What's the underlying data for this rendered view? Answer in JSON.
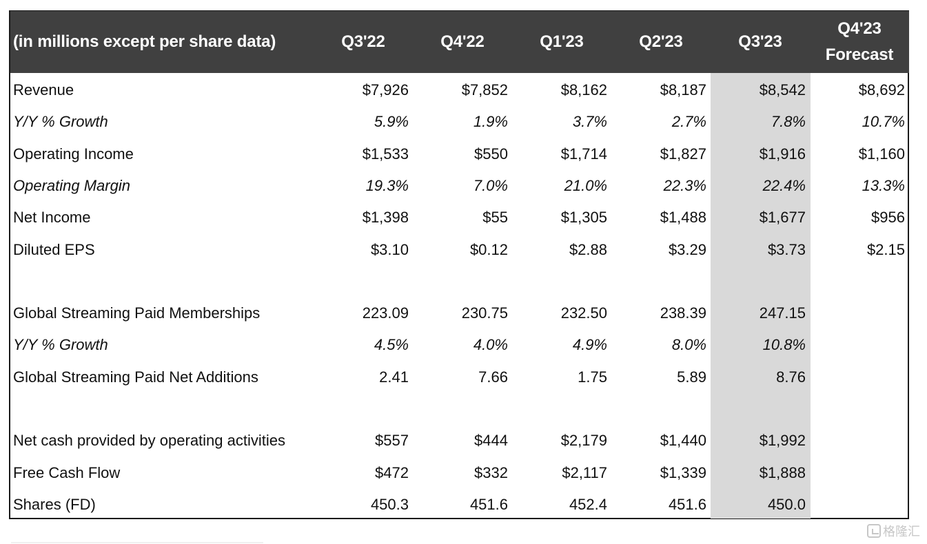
{
  "table": {
    "header": {
      "label": "(in millions except per share data)",
      "columns": [
        "Q3'22",
        "Q4'22",
        "Q1'23",
        "Q2'23",
        "Q3'23"
      ],
      "forecast_line1": "Q4'23",
      "forecast_line2": "Forecast"
    },
    "highlighted_column": "Q3'23",
    "colors": {
      "header_bg": "#404040",
      "header_text": "#ffffff",
      "highlight_bg": "#d9d9d9",
      "border": "#1a1a1a"
    },
    "rows": [
      {
        "label": "Revenue",
        "italic": false,
        "values": [
          "$7,926",
          "$7,852",
          "$8,162",
          "$8,187",
          "$8,542",
          "$8,692"
        ]
      },
      {
        "label": "Y/Y % Growth",
        "italic": true,
        "values": [
          "5.9%",
          "1.9%",
          "3.7%",
          "2.7%",
          "7.8%",
          "10.7%"
        ]
      },
      {
        "label": "Operating Income",
        "italic": false,
        "values": [
          "$1,533",
          "$550",
          "$1,714",
          "$1,827",
          "$1,916",
          "$1,160"
        ]
      },
      {
        "label": "Operating Margin",
        "italic": true,
        "values": [
          "19.3%",
          "7.0%",
          "21.0%",
          "22.3%",
          "22.4%",
          "13.3%"
        ]
      },
      {
        "label": "Net Income",
        "italic": false,
        "values": [
          "$1,398",
          "$55",
          "$1,305",
          "$1,488",
          "$1,677",
          "$956"
        ]
      },
      {
        "label": "Diluted EPS",
        "italic": false,
        "values": [
          "$3.10",
          "$0.12",
          "$2.88",
          "$3.29",
          "$3.73",
          "$2.15"
        ]
      },
      {
        "label": "",
        "italic": false,
        "values": [
          "",
          "",
          "",
          "",
          "",
          ""
        ]
      },
      {
        "label": "Global Streaming Paid Memberships",
        "italic": false,
        "values": [
          "223.09",
          "230.75",
          "232.50",
          "238.39",
          "247.15",
          ""
        ]
      },
      {
        "label": "Y/Y % Growth",
        "italic": true,
        "values": [
          "4.5%",
          "4.0%",
          "4.9%",
          "8.0%",
          "10.8%",
          ""
        ]
      },
      {
        "label": "Global Streaming Paid Net Additions",
        "italic": false,
        "values": [
          "2.41",
          "7.66",
          "1.75",
          "5.89",
          "8.76",
          ""
        ]
      },
      {
        "label": "",
        "italic": false,
        "values": [
          "",
          "",
          "",
          "",
          "",
          ""
        ]
      },
      {
        "label": "Net cash provided by operating activities",
        "italic": false,
        "values": [
          "$557",
          "$444",
          "$2,179",
          "$1,440",
          "$1,992",
          ""
        ]
      },
      {
        "label": "Free Cash Flow",
        "italic": false,
        "values": [
          "$472",
          "$332",
          "$2,117",
          "$1,339",
          "$1,888",
          ""
        ]
      },
      {
        "label": "Shares (FD)",
        "italic": false,
        "values": [
          "450.3",
          "451.6",
          "452.4",
          "451.6",
          "450.0",
          ""
        ]
      }
    ]
  },
  "watermark": {
    "text": "格隆汇",
    "icon": "gelonghui-logo-icon"
  }
}
